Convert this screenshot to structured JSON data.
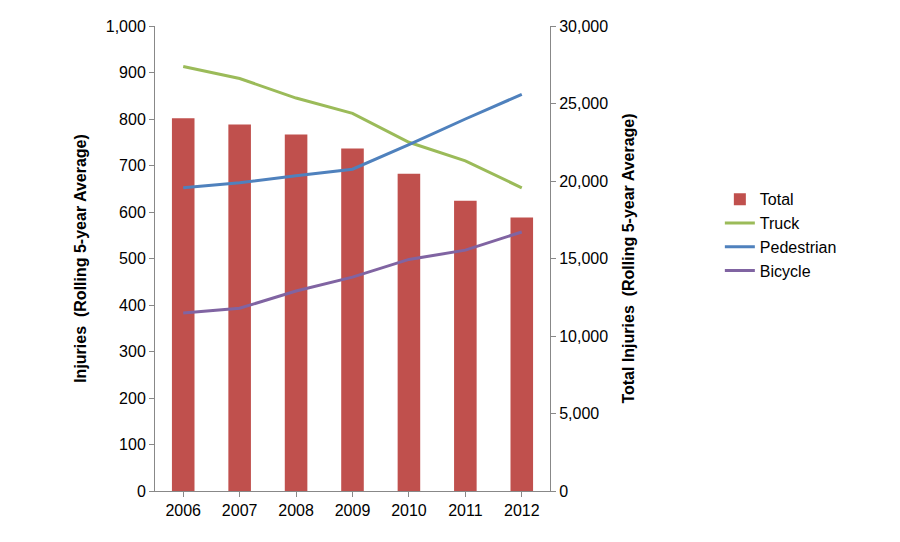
{
  "chart_data": {
    "type": "bar",
    "y_label": "Injuries  (Rolling 5-year Average)",
    "y2_label": "Total Injuries  (Rolling 5-year Average)",
    "categories": [
      "2006",
      "2007",
      "2008",
      "2009",
      "2010",
      "2011",
      "2012"
    ],
    "series": [
      {
        "name": "Total",
        "type": "bar",
        "axis": "y2",
        "color": "#c0504d",
        "values": [
          24050,
          23650,
          23000,
          22100,
          20460,
          18720,
          17640
        ]
      },
      {
        "name": "Truck",
        "type": "line",
        "color": "#9bbb59",
        "values": [
          913,
          887,
          845,
          812,
          750,
          710,
          652
        ]
      },
      {
        "name": "Pedestrian",
        "type": "line",
        "color": "#4f81bd",
        "values": [
          652,
          663,
          678,
          692,
          745,
          800,
          853
        ]
      },
      {
        "name": "Bicycle",
        "type": "line",
        "color": "#8064a2",
        "values": [
          383,
          393,
          430,
          460,
          498,
          518,
          557
        ]
      }
    ],
    "ylim": [
      0,
      1000
    ],
    "yticks": [
      0,
      100,
      200,
      300,
      400,
      500,
      600,
      700,
      800,
      900,
      {
        "value": 1000,
        "label": "1,000"
      }
    ],
    "y2lim": [
      0,
      30000
    ],
    "y2ticks": [
      0,
      {
        "value": 5000,
        "label": "5,000"
      },
      {
        "value": 10000,
        "label": "10,000"
      },
      {
        "value": 15000,
        "label": "15,000"
      },
      {
        "value": 20000,
        "label": "20,000"
      },
      {
        "value": 25000,
        "label": "25,000"
      },
      {
        "value": 30000,
        "label": "30,000"
      }
    ],
    "grid": false,
    "legend": "right"
  }
}
